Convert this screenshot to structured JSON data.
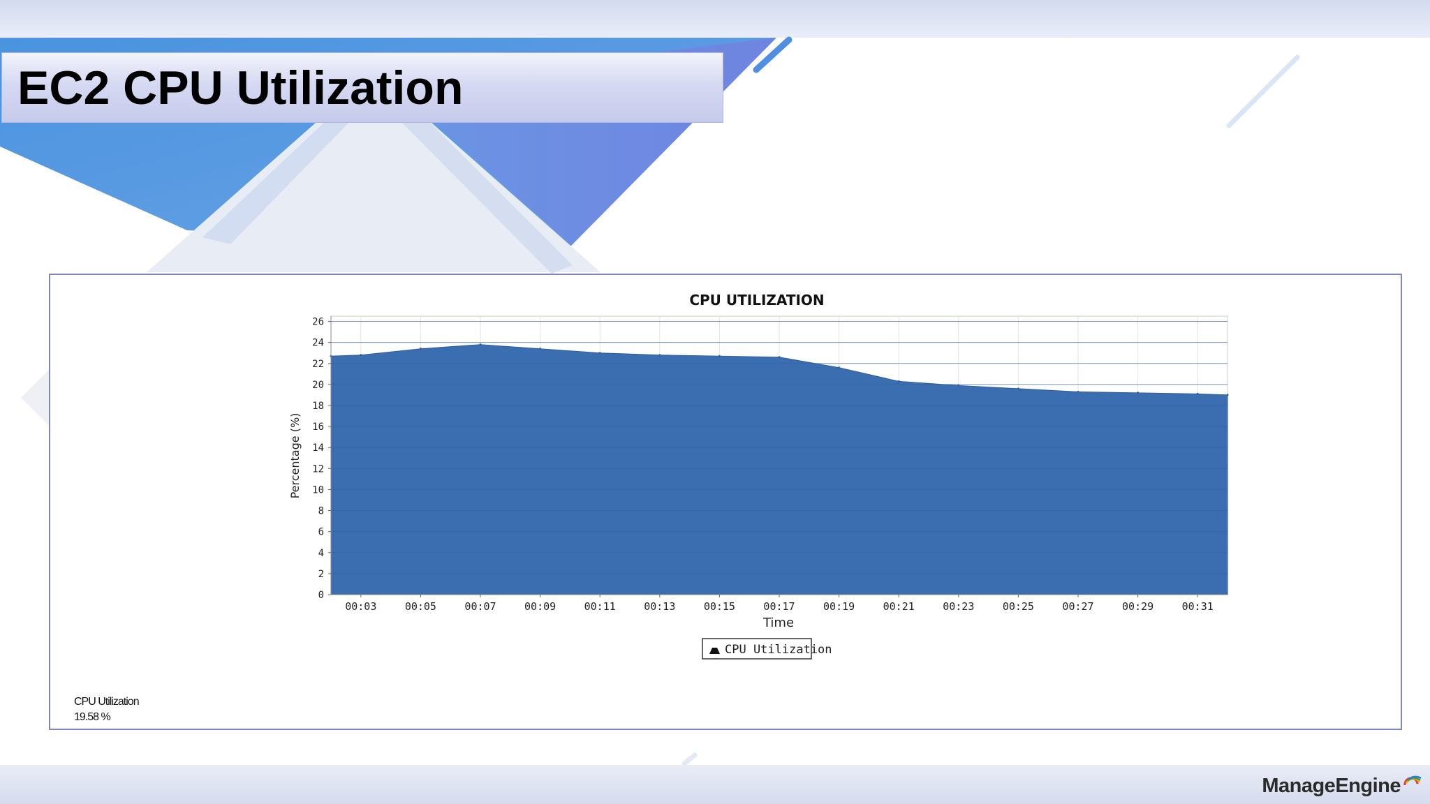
{
  "slide": {
    "title": "EC2 CPU Utilization",
    "brand": "ManageEngine",
    "colors": {
      "title_bar": "#c6cbec",
      "accent_blue": "#5b8de0",
      "chart_fill": "#3b6db1",
      "panel_border": "#7e86c8"
    }
  },
  "summary": {
    "label": "CPU Utilization",
    "value": "19.58 %"
  },
  "chart_data": {
    "type": "area",
    "title": "CPU UTILIZATION",
    "xlabel": "Time",
    "ylabel": "Percentage (%)",
    "ylim": [
      0,
      26.5
    ],
    "yticks": [
      0,
      2,
      4,
      6,
      8,
      10,
      12,
      14,
      16,
      18,
      20,
      22,
      24,
      26
    ],
    "xticks": [
      "00:03",
      "00:05",
      "00:07",
      "00:09",
      "00:11",
      "00:13",
      "00:15",
      "00:17",
      "00:19",
      "00:21",
      "00:23",
      "00:25",
      "00:27",
      "00:29",
      "00:31"
    ],
    "grid": true,
    "legend": "bottom-center",
    "series": [
      {
        "name": "CPU Utilization",
        "color": "#3b6db1",
        "x": [
          "00:02",
          "00:03",
          "00:05",
          "00:07",
          "00:09",
          "00:11",
          "00:13",
          "00:15",
          "00:17",
          "00:19",
          "00:21",
          "00:23",
          "00:25",
          "00:27",
          "00:29",
          "00:31",
          "00:32"
        ],
        "values": [
          22.7,
          22.8,
          23.4,
          23.8,
          23.4,
          23.0,
          22.8,
          22.7,
          22.6,
          21.6,
          20.3,
          19.9,
          19.6,
          19.3,
          19.2,
          19.1,
          19.0
        ]
      }
    ]
  }
}
